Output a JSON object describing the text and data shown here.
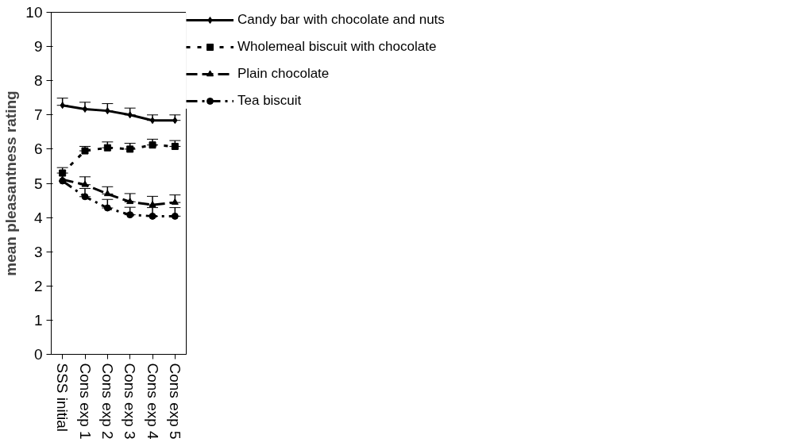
{
  "chart_data": {
    "type": "line",
    "ylabel": "mean pleasantness rating",
    "categories": [
      "SSS initial",
      "Cons exp 1",
      "Cons exp 2",
      "Cons exp 3",
      "Cons exp 4",
      "Cons exp 5"
    ],
    "ylim": [
      0,
      10
    ],
    "yticks": [
      0,
      1,
      2,
      3,
      4,
      5,
      6,
      7,
      8,
      9,
      10
    ],
    "grid": false,
    "legend": "right",
    "series": [
      {
        "name": "Candy bar with chocolate and nuts",
        "color": "#000000",
        "marker": "diamond",
        "line_style": "solid",
        "values": [
          7.28,
          7.17,
          7.12,
          7.0,
          6.84,
          6.84
        ],
        "errors": [
          [
            7.28,
            7.49
          ],
          [
            7.17,
            7.37
          ],
          [
            7.12,
            7.33
          ],
          [
            7.0,
            7.2
          ],
          [
            6.84,
            7.0
          ],
          [
            6.84,
            7.0
          ]
        ]
      },
      {
        "name": "Wholemeal biscuit with chocolate",
        "color": "#000000",
        "marker": "square",
        "line_style": "dotted",
        "values": [
          5.3,
          5.95,
          6.04,
          6.0,
          6.12,
          6.08
        ],
        "errors": [
          [
            5.3,
            5.46
          ],
          [
            5.95,
            6.08
          ],
          [
            6.04,
            6.21
          ],
          [
            6.0,
            6.17
          ],
          [
            6.12,
            6.29
          ],
          [
            6.08,
            6.25
          ]
        ]
      },
      {
        "name": "Plain chocolate",
        "color": "#000000",
        "marker": "triangle",
        "line_style": "dashed",
        "values": [
          5.11,
          4.96,
          4.69,
          4.46,
          4.37,
          4.44
        ],
        "errors": [
          null,
          [
            4.96,
            5.19
          ],
          [
            4.69,
            4.9
          ],
          [
            4.46,
            4.7
          ],
          [
            4.37,
            4.62
          ],
          [
            4.44,
            4.66
          ]
        ]
      },
      {
        "name": "Tea biscuit",
        "color": "#000000",
        "marker": "circle",
        "line_style": "dashdot",
        "values": [
          5.07,
          4.61,
          4.28,
          4.08,
          4.04,
          4.04
        ],
        "errors": [
          null,
          [
            4.61,
            4.85
          ],
          [
            4.28,
            4.53
          ],
          [
            4.08,
            4.3
          ],
          [
            4.04,
            4.29
          ],
          [
            4.04,
            4.29
          ]
        ]
      }
    ]
  }
}
